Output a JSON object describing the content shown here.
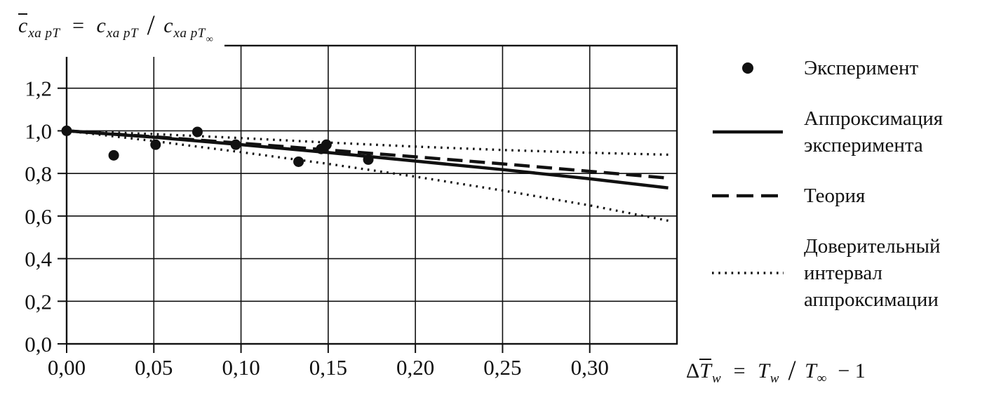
{
  "colors": {
    "background": "#ffffff",
    "ink": "#111111"
  },
  "formulas": {
    "y_axis": {
      "c1": "c",
      "sub1": "xa pT",
      "eq": "=",
      "c2": "c",
      "sub2": "xa pT",
      "slash": "/",
      "c3": "c",
      "sub3": "xa pT",
      "inf": "∞"
    },
    "x_axis": {
      "delta": "Δ",
      "t1": "T",
      "sub1": "w",
      "eq": "=",
      "t2": "T",
      "sub2": "w",
      "slash": "/",
      "t3": "T",
      "sub3": "∞",
      "tail": "− 1"
    }
  },
  "chart_data": {
    "type": "line",
    "title": "",
    "xlabel": "ΔT̄w = Tw / T∞ − 1",
    "ylabel": "c̄xa pT = cxa pT / cxa pT∞",
    "xlim": [
      0,
      0.35
    ],
    "ylim": [
      0,
      1.4
    ],
    "grid": true,
    "x_ticks": {
      "values": [
        0,
        0.05,
        0.1,
        0.15,
        0.2,
        0.25,
        0.3
      ],
      "labels": [
        "0,00",
        "0,05",
        "0,10",
        "0,15",
        "0,20",
        "0,25",
        "0,30"
      ]
    },
    "y_ticks": {
      "values": [
        0,
        0.2,
        0.4,
        0.6,
        0.8,
        1.0,
        1.2
      ],
      "labels": [
        "0,0",
        "0,2",
        "0,4",
        "0,6",
        "0,8",
        "1,0",
        "1,2"
      ]
    },
    "series": [
      {
        "name": "Доверительный интервал аппроксимации (верхняя граница)",
        "type": "line",
        "style": "dotted",
        "points": [
          [
            0,
            1.0
          ],
          [
            0.05,
            0.985
          ],
          [
            0.1,
            0.966
          ],
          [
            0.15,
            0.945
          ],
          [
            0.2,
            0.926
          ],
          [
            0.25,
            0.91
          ],
          [
            0.3,
            0.897
          ],
          [
            0.345,
            0.888
          ]
        ]
      },
      {
        "name": "Доверительный интервал аппроксимации (нижняя граница)",
        "type": "line",
        "style": "dotted",
        "points": [
          [
            0,
            1.0
          ],
          [
            0.05,
            0.952
          ],
          [
            0.1,
            0.9
          ],
          [
            0.15,
            0.845
          ],
          [
            0.2,
            0.785
          ],
          [
            0.25,
            0.72
          ],
          [
            0.3,
            0.65
          ],
          [
            0.345,
            0.578
          ]
        ]
      },
      {
        "name": "Теория",
        "type": "line",
        "style": "dashed",
        "points": [
          [
            0,
            1.0
          ],
          [
            0.05,
            0.972
          ],
          [
            0.1,
            0.942
          ],
          [
            0.15,
            0.91
          ],
          [
            0.2,
            0.878
          ],
          [
            0.25,
            0.845
          ],
          [
            0.3,
            0.81
          ],
          [
            0.345,
            0.778
          ]
        ]
      },
      {
        "name": "Аппроксимация эксперимента",
        "type": "line",
        "style": "solid",
        "points": [
          [
            0,
            1.0
          ],
          [
            0.05,
            0.97
          ],
          [
            0.1,
            0.935
          ],
          [
            0.15,
            0.898
          ],
          [
            0.2,
            0.858
          ],
          [
            0.25,
            0.818
          ],
          [
            0.3,
            0.775
          ],
          [
            0.345,
            0.732
          ]
        ]
      },
      {
        "name": "Эксперимент",
        "type": "scatter",
        "marker": "dot",
        "points": [
          [
            0.0,
            1.0
          ],
          [
            0.027,
            0.885
          ],
          [
            0.051,
            0.935
          ],
          [
            0.075,
            0.995
          ],
          [
            0.097,
            0.935
          ],
          [
            0.133,
            0.855
          ],
          [
            0.146,
            0.915
          ],
          [
            0.149,
            0.935
          ],
          [
            0.173,
            0.865
          ]
        ]
      }
    ],
    "legend": {
      "position": "right",
      "items": [
        {
          "marker": "dot",
          "label": "Эксперимент"
        },
        {
          "marker": "solid",
          "label": "Аппроксимация\nэксперимента"
        },
        {
          "marker": "dashed",
          "label": "Теория"
        },
        {
          "marker": "dotted",
          "label": "Доверительный\nинтервал\nаппроксимации"
        }
      ]
    }
  }
}
